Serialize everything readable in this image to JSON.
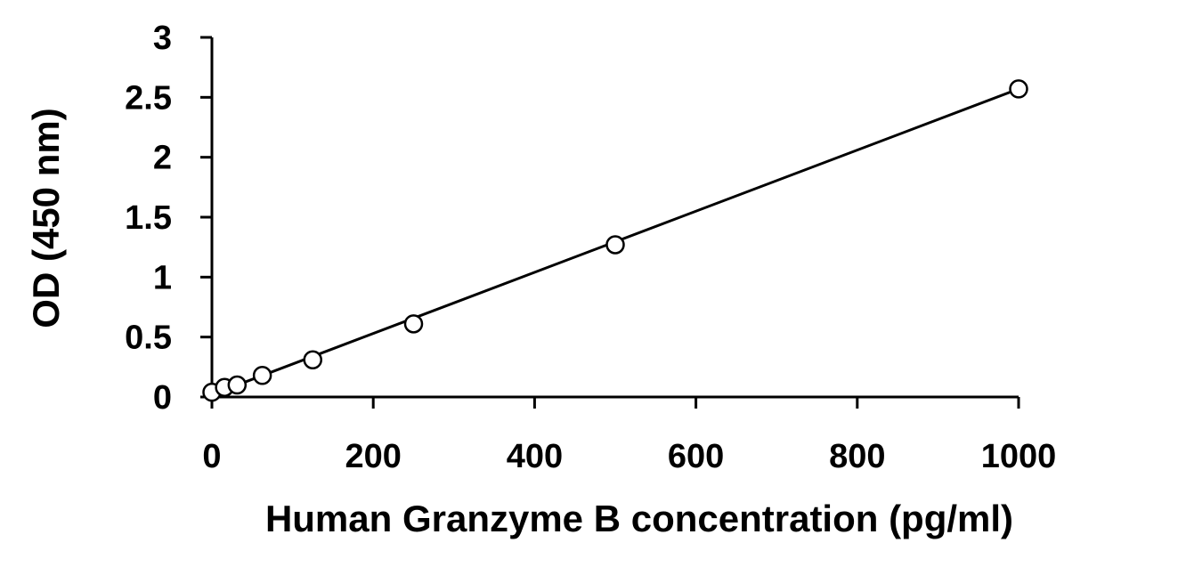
{
  "chart_data": {
    "type": "scatter",
    "title": "",
    "xlabel": "Human Granzyme B concentration (pg/ml)",
    "ylabel": "OD (450 nm)",
    "xlim": [
      0,
      1000
    ],
    "ylim": [
      0,
      3
    ],
    "x_ticks": [
      "0",
      "200",
      "400",
      "600",
      "800",
      "1000"
    ],
    "y_ticks": [
      "0",
      "0.5",
      "1",
      "1.5",
      "2",
      "2.5",
      "3"
    ],
    "grid": false,
    "legend": "none",
    "marker": "open-circle",
    "trendline": "linear",
    "trendline_endpoints": [
      {
        "x": 0,
        "y": 0.02
      },
      {
        "x": 1000,
        "y": 2.57
      }
    ],
    "series": [
      {
        "x": [
          0,
          15.6,
          31.25,
          62.5,
          125,
          250,
          500,
          1000
        ],
        "y": [
          0.04,
          0.08,
          0.1,
          0.18,
          0.31,
          0.61,
          1.27,
          2.57
        ]
      }
    ],
    "colors": {
      "axis": "#000000",
      "line": "#000000",
      "marker_fill": "#ffffff",
      "marker_stroke": "#000000"
    }
  }
}
